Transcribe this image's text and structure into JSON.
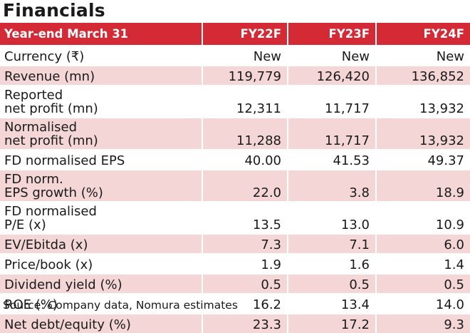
{
  "title": "Financials",
  "header": [
    "Year-end March 31",
    "FY22F",
    "FY23F",
    "FY24F"
  ],
  "rows": [
    {
      "label": [
        "Currency (₹)"
      ],
      "values": [
        "New",
        "New",
        "New"
      ]
    },
    {
      "label": [
        "Revenue (mn)"
      ],
      "values": [
        "119,779",
        "126,420",
        "136,852"
      ]
    },
    {
      "label": [
        "Reported",
        "net profit (mn)"
      ],
      "values": [
        "12,311",
        "11,717",
        "13,932"
      ]
    },
    {
      "label": [
        "Normalised",
        "net profit (mn)"
      ],
      "values": [
        "11,288",
        "11,717",
        "13,932"
      ]
    },
    {
      "label": [
        "FD normalised EPS"
      ],
      "values": [
        "40.00",
        "41.53",
        "49.37"
      ]
    },
    {
      "label": [
        "FD norm.",
        "EPS growth (%)"
      ],
      "values": [
        "22.0",
        "3.8",
        "18.9"
      ]
    },
    {
      "label": [
        "FD normalised",
        "P/E (x)"
      ],
      "values": [
        "13.5",
        "13.0",
        "10.9"
      ]
    },
    {
      "label": [
        "EV/Ebitda (x)"
      ],
      "values": [
        "7.3",
        "7.1",
        "6.0"
      ]
    },
    {
      "label": [
        "Price/book (x)"
      ],
      "values": [
        "1.9",
        "1.6",
        "1.4"
      ]
    },
    {
      "label": [
        "Dividend yield (%)"
      ],
      "values": [
        "0.5",
        "0.5",
        "0.5"
      ]
    },
    {
      "label": [
        "ROE (%)"
      ],
      "values": [
        "16.2",
        "13.4",
        "14.0"
      ]
    },
    {
      "label": [
        "Net debt/equity (%)"
      ],
      "values": [
        "23.3",
        "17.2",
        "9.3"
      ]
    }
  ],
  "source": "Source: Company data, Nomura estimates",
  "colors": {
    "header_bg": "#d42a35",
    "stripe_bg": "#f4d6d6"
  }
}
